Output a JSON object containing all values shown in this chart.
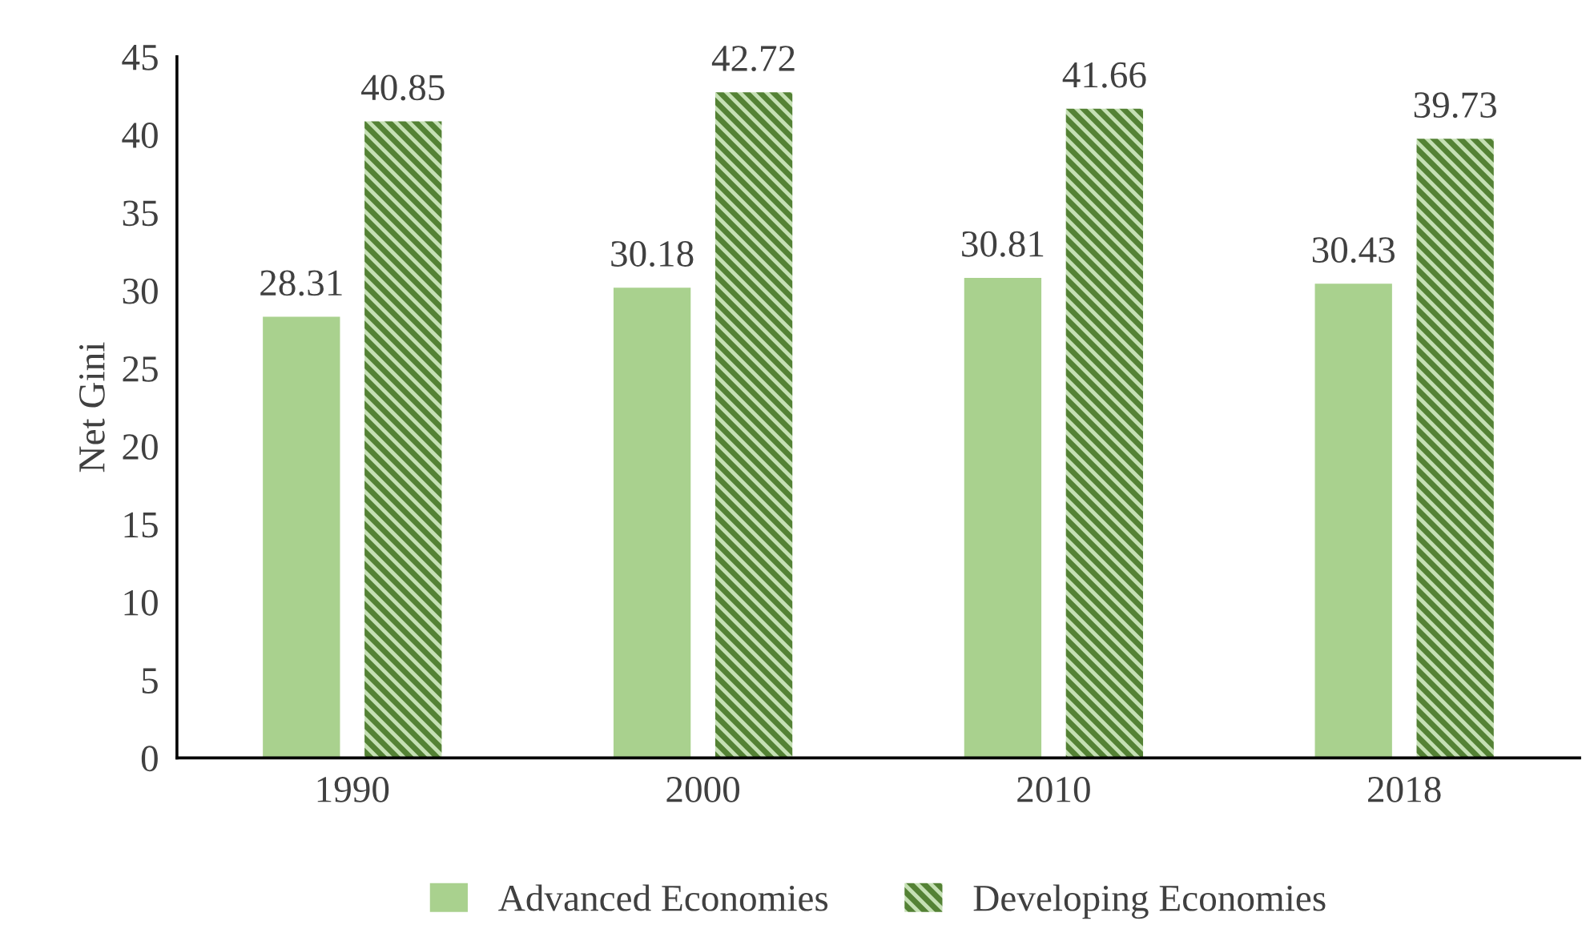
{
  "chart_data": {
    "type": "bar",
    "ylabel": "Net Gini",
    "categories": [
      "1990",
      "2000",
      "2010",
      "2018"
    ],
    "series": [
      {
        "name": "Advanced Economies",
        "color": "#a9d18e",
        "values": [
          28.31,
          30.18,
          30.81,
          30.43
        ]
      },
      {
        "name": "Developing Economies",
        "color": "#548235",
        "values": [
          40.85,
          42.72,
          41.66,
          39.73
        ]
      }
    ],
    "ylim": [
      0,
      45
    ],
    "yticks": [
      0,
      5,
      10,
      15,
      20,
      25,
      30,
      35,
      40,
      45
    ],
    "data_labels": true,
    "grid": false,
    "legend": "bottom"
  }
}
